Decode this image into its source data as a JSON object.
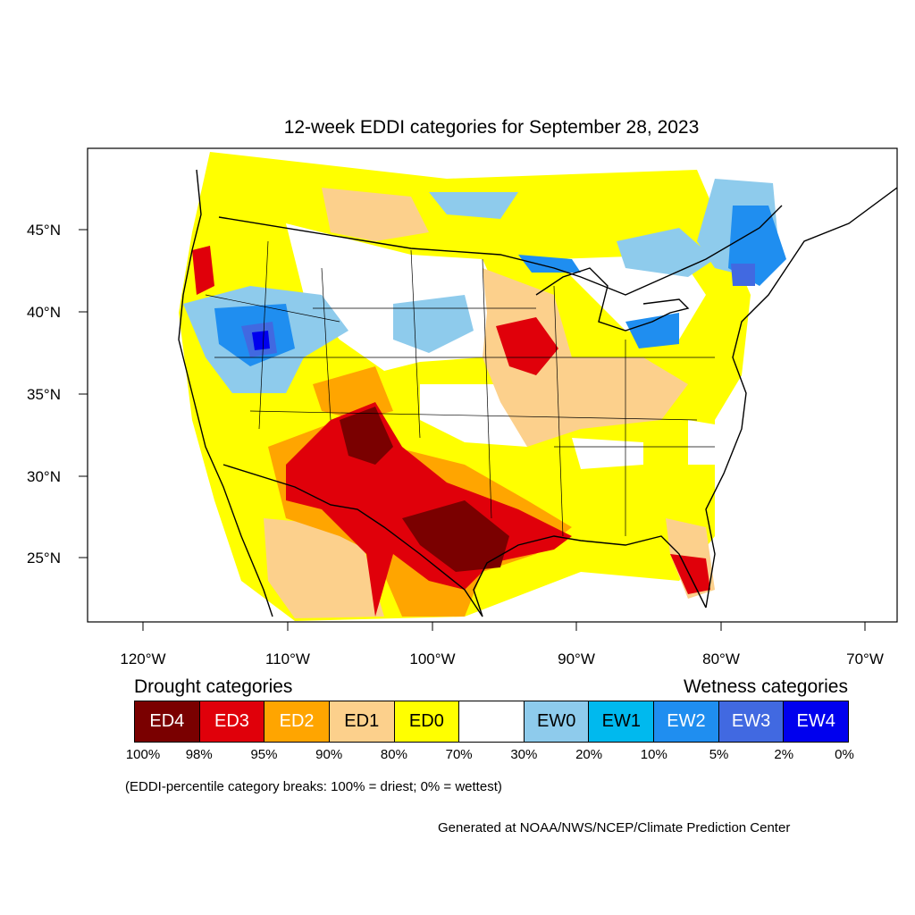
{
  "title": "12-week EDDI categories for September 28, 2023",
  "lat_labels": [
    "45°N",
    "40°N",
    "35°N",
    "30°N",
    "25°N"
  ],
  "lon_labels": [
    "120°W",
    "110°W",
    "100°W",
    "90°W",
    "80°W",
    "70°W"
  ],
  "drought_heading": "Drought categories",
  "wetness_heading": "Wetness categories",
  "legend": [
    {
      "label": "ED4",
      "color": "#7a0000",
      "text_color": "#ffffff"
    },
    {
      "label": "ED3",
      "color": "#e0000a",
      "text_color": "#ffffff"
    },
    {
      "label": "ED2",
      "color": "#ffa500",
      "text_color": "#ffffff"
    },
    {
      "label": "ED1",
      "color": "#fcd08c",
      "text_color": "#000000"
    },
    {
      "label": "ED0",
      "color": "#ffff00",
      "text_color": "#000000"
    },
    {
      "label": "",
      "color": "#ffffff",
      "text_color": "#000000"
    },
    {
      "label": "EW0",
      "color": "#8ecbec",
      "text_color": "#000000"
    },
    {
      "label": "EW1",
      "color": "#00b9ee",
      "text_color": "#000000"
    },
    {
      "label": "EW2",
      "color": "#1f8ef0",
      "text_color": "#ffffff"
    },
    {
      "label": "EW3",
      "color": "#4169e1",
      "text_color": "#ffffff"
    },
    {
      "label": "EW4",
      "color": "#0000ee",
      "text_color": "#ffffff"
    }
  ],
  "percent_breaks": [
    "100%",
    "98%",
    "95%",
    "90%",
    "80%",
    "70%",
    "30%",
    "20%",
    "10%",
    "5%",
    "2%",
    "0%"
  ],
  "note": "(EDDI-percentile category breaks: 100% = driest; 0% = wettest)",
  "credit": "Generated at NOAA/NWS/NCEP/Climate Prediction Center"
}
